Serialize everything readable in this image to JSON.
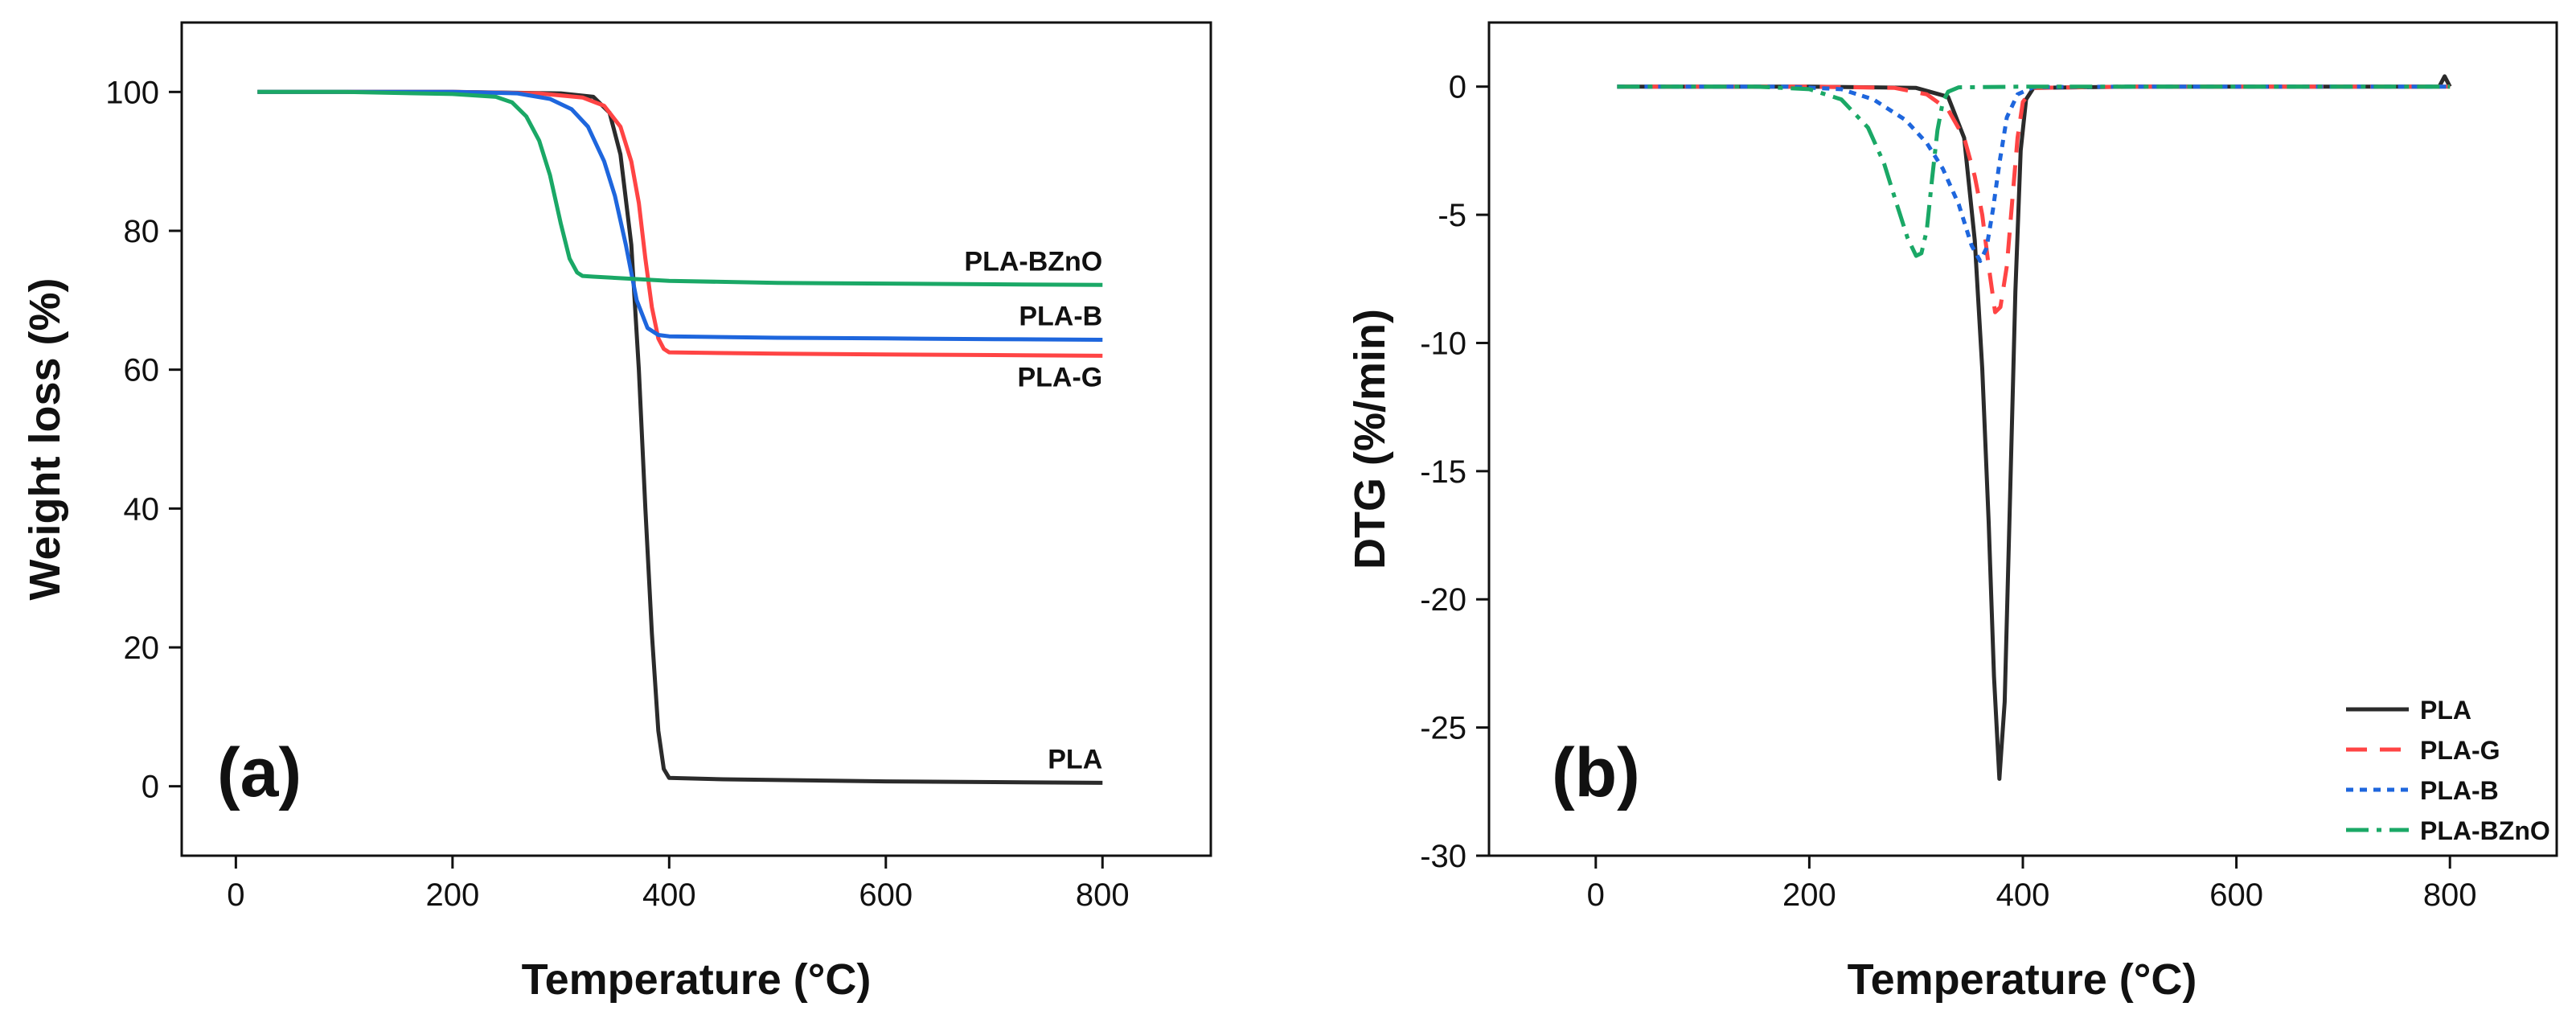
{
  "figure": {
    "panels": [
      "(a)",
      "(b)"
    ]
  },
  "chart_data": [
    {
      "type": "line",
      "panel": "(a)",
      "title": "",
      "xlabel": "Temperature (°C)",
      "ylabel": "Weight loss (%)",
      "xlim": [
        -50,
        900
      ],
      "ylim": [
        -10,
        110
      ],
      "xticks": [
        0,
        200,
        400,
        600,
        800
      ],
      "yticks": [
        0,
        20,
        40,
        60,
        80,
        100
      ],
      "grid": false,
      "series": [
        {
          "name": "PLA",
          "label": "PLA",
          "color": "#2b2b2b",
          "dash": "solid",
          "x": [
            20,
            100,
            200,
            300,
            330,
            345,
            355,
            365,
            372,
            378,
            384,
            390,
            395,
            400,
            450,
            500,
            600,
            700,
            800
          ],
          "y": [
            100,
            100,
            100,
            99.8,
            99.3,
            97,
            91,
            78,
            60,
            40,
            22,
            8,
            2.5,
            1.2,
            1.0,
            0.9,
            0.7,
            0.6,
            0.5
          ]
        },
        {
          "name": "PLA-G",
          "label": "PLA-G",
          "color": "#ff4444",
          "dash": "solid",
          "x": [
            20,
            100,
            200,
            280,
            320,
            340,
            355,
            365,
            372,
            378,
            384,
            390,
            395,
            400,
            500,
            600,
            700,
            800
          ],
          "y": [
            100,
            100,
            100,
            99.8,
            99.2,
            98,
            95,
            90,
            84,
            76,
            69,
            64.5,
            63,
            62.5,
            62.3,
            62.2,
            62.1,
            62
          ]
        },
        {
          "name": "PLA-B",
          "label": "PLA-B",
          "color": "#1e66dd",
          "dash": "solid",
          "x": [
            20,
            100,
            200,
            260,
            290,
            310,
            325,
            340,
            350,
            360,
            370,
            380,
            390,
            400,
            500,
            600,
            700,
            800
          ],
          "y": [
            100,
            100,
            100,
            99.8,
            99,
            97.5,
            95,
            90,
            85,
            78,
            70,
            66,
            65,
            64.8,
            64.6,
            64.5,
            64.4,
            64.3
          ]
        },
        {
          "name": "PLA-BZnO",
          "label": "PLA-BZnO",
          "color": "#1aa866",
          "dash": "solid",
          "x": [
            20,
            100,
            200,
            240,
            255,
            268,
            280,
            290,
            300,
            308,
            315,
            320,
            330,
            400,
            500,
            600,
            700,
            800
          ],
          "y": [
            100,
            100,
            99.7,
            99.3,
            98.5,
            96.5,
            93,
            88,
            81,
            76,
            74,
            73.5,
            73.4,
            72.8,
            72.5,
            72.4,
            72.3,
            72.2
          ]
        }
      ],
      "annotations": [
        {
          "text": "PLA-BZnO",
          "series": "PLA-BZnO"
        },
        {
          "text": "PLA-B",
          "series": "PLA-B"
        },
        {
          "text": "PLA-G",
          "series": "PLA-G"
        },
        {
          "text": "PLA",
          "series": "PLA"
        }
      ]
    },
    {
      "type": "line",
      "panel": "(b)",
      "title": "",
      "xlabel": "Temperature (°C)",
      "ylabel": "DTG (%/min)",
      "xlim": [
        -100,
        900
      ],
      "ylim": [
        -30,
        2.5
      ],
      "xticks": [
        0,
        200,
        400,
        600,
        800
      ],
      "yticks": [
        0,
        -5,
        -10,
        -15,
        -20,
        -25,
        -30
      ],
      "grid": false,
      "legend": "bottom-right",
      "series": [
        {
          "name": "PLA",
          "color": "#2b2b2b",
          "dash": "solid",
          "x": [
            20,
            200,
            300,
            330,
            345,
            355,
            362,
            368,
            373,
            378,
            383,
            388,
            393,
            398,
            403,
            410,
            500,
            700,
            790,
            795,
            800
          ],
          "y": [
            0,
            0,
            -0.05,
            -0.4,
            -2,
            -6,
            -11,
            -17,
            -23,
            -27,
            -24,
            -16,
            -8,
            -2.5,
            -0.5,
            -0.05,
            0,
            0,
            0,
            0.4,
            0
          ]
        },
        {
          "name": "PLA-G",
          "color": "#ff4444",
          "dash": "longdash",
          "x": [
            20,
            200,
            280,
            310,
            330,
            345,
            355,
            362,
            368,
            374,
            379,
            385,
            390,
            395,
            400,
            410,
            500,
            800
          ],
          "y": [
            0,
            0,
            -0.05,
            -0.3,
            -0.9,
            -2,
            -3.5,
            -5,
            -7,
            -8.8,
            -8.6,
            -7,
            -4.5,
            -2,
            -0.6,
            -0.05,
            0,
            0
          ]
        },
        {
          "name": "PLA-B",
          "color": "#1e66dd",
          "dash": "dotted",
          "x": [
            20,
            180,
            230,
            260,
            290,
            310,
            325,
            340,
            352,
            360,
            366,
            372,
            378,
            385,
            395,
            410,
            500,
            800
          ],
          "y": [
            0,
            0,
            -0.1,
            -0.5,
            -1.3,
            -2.2,
            -3.2,
            -4.6,
            -6.2,
            -6.8,
            -6.3,
            -4.8,
            -3,
            -1.2,
            -0.3,
            -0.02,
            0,
            0
          ]
        },
        {
          "name": "PLA-BZnO",
          "color": "#1aa866",
          "dash": "dashdot",
          "x": [
            20,
            150,
            200,
            230,
            255,
            270,
            282,
            292,
            300,
            305,
            310,
            315,
            320,
            325,
            330,
            340,
            400,
            500,
            800
          ],
          "y": [
            0,
            0,
            -0.1,
            -0.5,
            -1.6,
            -3,
            -4.6,
            -5.9,
            -6.6,
            -6.5,
            -5.6,
            -3.6,
            -1.7,
            -0.6,
            -0.2,
            -0.03,
            0,
            0,
            0
          ]
        }
      ]
    }
  ]
}
